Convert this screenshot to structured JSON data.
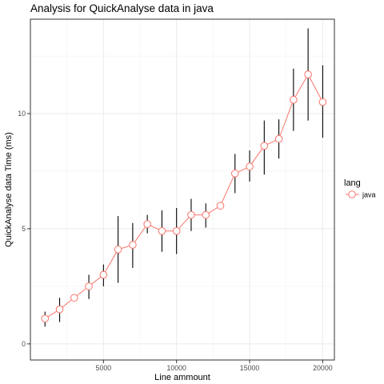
{
  "chart_data": {
    "type": "line",
    "title": "Analysis for QuickAnalyse data in java",
    "xlabel": "Line ammount",
    "ylabel": "QuickAnalyse data Time (ms)",
    "xlim": [
      0,
      20800
    ],
    "ylim": [
      -0.7,
      14.1
    ],
    "x_ticks": [
      5000,
      10000,
      15000,
      20000
    ],
    "x_tick_labels": [
      "5000",
      "10000",
      "15000",
      "20000"
    ],
    "y_ticks": [
      0,
      5,
      10
    ],
    "y_tick_labels": [
      "0",
      "5",
      "10"
    ],
    "grid": true,
    "legend": {
      "title": "lang",
      "position": "right",
      "entries": [
        "java"
      ]
    },
    "series": [
      {
        "name": "java",
        "color": "#F8766D",
        "points": [
          {
            "x": 1000,
            "y": 1.1,
            "low": 0.75,
            "high": 1.4
          },
          {
            "x": 2000,
            "y": 1.5,
            "low": 0.95,
            "high": 2.0
          },
          {
            "x": 3000,
            "y": 2.0,
            "low": 2.0,
            "high": 2.0
          },
          {
            "x": 4000,
            "y": 2.5,
            "low": 1.95,
            "high": 3.0
          },
          {
            "x": 5000,
            "y": 3.0,
            "low": 2.5,
            "high": 3.45
          },
          {
            "x": 6000,
            "y": 4.1,
            "low": 2.65,
            "high": 5.55
          },
          {
            "x": 7000,
            "y": 4.3,
            "low": 3.3,
            "high": 5.25
          },
          {
            "x": 8000,
            "y": 5.2,
            "low": 4.8,
            "high": 5.6
          },
          {
            "x": 9000,
            "y": 4.9,
            "low": 4.0,
            "high": 5.8
          },
          {
            "x": 10000,
            "y": 4.9,
            "low": 3.9,
            "high": 5.9
          },
          {
            "x": 11000,
            "y": 5.6,
            "low": 4.9,
            "high": 6.3
          },
          {
            "x": 12000,
            "y": 5.6,
            "low": 5.05,
            "high": 6.1
          },
          {
            "x": 13000,
            "y": 6.0,
            "low": 6.0,
            "high": 6.0
          },
          {
            "x": 14000,
            "y": 7.4,
            "low": 6.55,
            "high": 8.25
          },
          {
            "x": 15000,
            "y": 7.7,
            "low": 7.05,
            "high": 8.4
          },
          {
            "x": 16000,
            "y": 8.6,
            "low": 7.35,
            "high": 9.7
          },
          {
            "x": 17000,
            "y": 8.9,
            "low": 8.05,
            "high": 9.75
          },
          {
            "x": 18000,
            "y": 10.6,
            "low": 9.25,
            "high": 11.95
          },
          {
            "x": 19000,
            "y": 11.7,
            "low": 9.7,
            "high": 13.7
          },
          {
            "x": 20000,
            "y": 10.5,
            "low": 8.95,
            "high": 12.1
          }
        ]
      }
    ]
  }
}
